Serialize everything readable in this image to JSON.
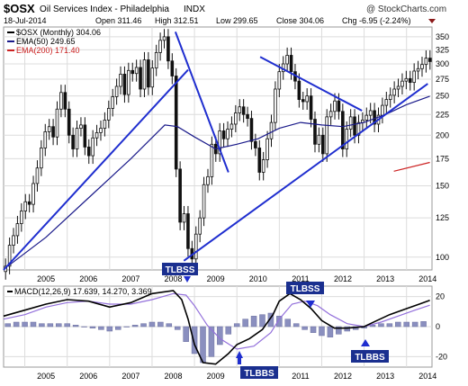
{
  "header": {
    "symbol": "$OSX",
    "name": "Oil Services Index - Philadelphia",
    "exchange": "INDX",
    "date": "18-Jul-2014",
    "open": "Open 311.46",
    "high": "High 312.51",
    "low": "Low 299.65",
    "close": "Close 304.06",
    "chg": "Chg -6.95 (-2.24%)",
    "watermark": "@ StockCharts.com"
  },
  "legend": {
    "price": "$OSX (Monthly) 304.06",
    "ema50": "EMA(50) 249.65",
    "ema200": "EMA(200) 171.40"
  },
  "macd_label": {
    "name": "MACD(12,26,9) 17.639, 14.270, 3.369"
  },
  "annotations": {
    "a1": "TLBSS",
    "a2": "TLBBS",
    "a3": "TLBSS",
    "a4": "TLBBS"
  },
  "colors": {
    "candle": "#111111",
    "ema50": "#1a1a8a",
    "ema200": "#cc2222",
    "trendline": "#1f2ecf",
    "macd": "#000000",
    "signal": "#9370db",
    "histogram": "#8a8fbf",
    "grid": "#dcdcdc",
    "down_triangle": "#8b1a1a"
  },
  "chart_data": [
    {
      "type": "candlestick",
      "title": "$OSX Oil Services Index - Philadelphia INDX",
      "scale": "log",
      "ylim": [
        93,
        370
      ],
      "yticks": [
        100,
        125,
        150,
        175,
        200,
        225,
        250,
        275,
        300,
        325,
        350
      ],
      "xlim": [
        2004.5,
        2014.6
      ],
      "xticks": [
        "2005",
        "2006",
        "2007",
        "2008",
        "2009",
        "2010",
        "2011",
        "2012",
        "2013",
        "2014"
      ],
      "grid": true,
      "legend_position": "top-left",
      "series": [
        {
          "name": "$OSX (Monthly)",
          "style": "candles",
          "close": [
            95,
            107,
            113,
            121,
            130,
            137,
            135,
            152,
            166,
            186,
            204,
            210,
            198,
            232,
            255,
            232,
            200,
            185,
            208,
            212,
            187,
            178,
            197,
            203,
            208,
            218,
            233,
            249,
            264,
            283,
            252,
            289,
            284,
            294,
            260,
            307,
            263,
            293,
            320,
            343,
            350,
            305,
            280,
            165,
            122,
            128,
            105,
            99,
            114,
            125,
            151,
            158,
            190,
            180,
            205,
            196,
            207,
            213,
            227,
            235,
            225,
            220,
            193,
            186,
            162,
            174,
            196,
            215,
            260,
            287,
            300,
            315,
            287,
            272,
            245,
            242,
            250,
            219,
            190,
            200,
            180,
            222,
            229,
            243,
            229,
            185,
            207,
            222,
            200,
            215,
            218,
            224,
            230,
            213,
            224,
            237,
            245,
            251,
            260,
            264,
            272,
            276,
            270,
            288,
            292,
            299,
            310,
            304
          ]
        },
        {
          "name": "EMA(50)",
          "x": [
            2004.6,
            2005.5,
            2006.5,
            2007.5,
            2008.3,
            2008.6,
            2009.0,
            2009.5,
            2010.0,
            2010.5,
            2011.0,
            2011.5,
            2012.0,
            2012.5,
            2013.0,
            2013.5,
            2014.0,
            2014.55
          ],
          "y": [
            95,
            112,
            140,
            175,
            212,
            210,
            198,
            185,
            190,
            196,
            208,
            215,
            212,
            210,
            215,
            225,
            238,
            249.65
          ]
        },
        {
          "name": "EMA(200)",
          "x": [
            2013.7,
            2014.55
          ],
          "y": [
            163,
            171.4
          ]
        },
        {
          "name": "Trendline 1",
          "x": [
            2004.5,
            2008.85
          ],
          "y": [
            93,
            290
          ]
        },
        {
          "name": "Trendline 2",
          "x": [
            2008.55,
            2009.8
          ],
          "y": [
            360,
            162
          ]
        },
        {
          "name": "Trendline 3",
          "x": [
            2008.75,
            2014.5
          ],
          "y": [
            98,
            268
          ]
        },
        {
          "name": "Trendline 4",
          "x": [
            2010.55,
            2012.95
          ],
          "y": [
            312,
            230
          ]
        }
      ]
    },
    {
      "type": "line",
      "title": "MACD(12,26,9) 17.639, 14.270, 3.369",
      "ylim": [
        -27,
        27
      ],
      "yticks": [
        -20,
        0,
        20
      ],
      "xticks": [
        "2005",
        "2006",
        "2007",
        "2008",
        "2009",
        "2010",
        "2011",
        "2012",
        "2013",
        "2014"
      ],
      "series": [
        {
          "name": "MACD",
          "x": [
            2004.5,
            2005.0,
            2005.5,
            2006.0,
            2006.5,
            2007.0,
            2007.5,
            2008.0,
            2008.5,
            2008.7,
            2008.85,
            2009.0,
            2009.2,
            2009.5,
            2009.8,
            2010.0,
            2010.3,
            2010.6,
            2010.85,
            2011.0,
            2011.25,
            2011.5,
            2011.75,
            2012.0,
            2012.3,
            2012.6,
            2013.0,
            2013.3,
            2013.6,
            2014.0,
            2014.3,
            2014.55
          ],
          "y": [
            7,
            11,
            15,
            18,
            17,
            13,
            16,
            22,
            24,
            18,
            5,
            -12,
            -24,
            -25,
            -18,
            -12,
            -8,
            -2,
            8,
            17,
            22,
            18,
            12,
            4,
            -1,
            -1,
            0,
            4,
            8,
            12,
            15,
            17.6
          ]
        },
        {
          "name": "Signal",
          "x": [
            2004.5,
            2005.0,
            2005.5,
            2006.0,
            2006.5,
            2007.0,
            2007.5,
            2008.0,
            2008.5,
            2008.8,
            2009.0,
            2009.3,
            2009.6,
            2010.0,
            2010.4,
            2010.8,
            2011.0,
            2011.3,
            2011.6,
            2011.9,
            2012.2,
            2012.6,
            2013.0,
            2013.4,
            2013.8,
            2014.2,
            2014.55
          ],
          "y": [
            5,
            8,
            13,
            16,
            17,
            15,
            15,
            18,
            22,
            21,
            14,
            1,
            -8,
            -15,
            -13,
            -4,
            5,
            15,
            17,
            14,
            8,
            2,
            0,
            3,
            7,
            11,
            14.3
          ]
        },
        {
          "name": "Histogram",
          "x": [
            2004.6,
            2004.8,
            2005.0,
            2005.2,
            2005.4,
            2005.6,
            2005.8,
            2006.0,
            2006.2,
            2006.4,
            2006.6,
            2006.8,
            2007.0,
            2007.2,
            2007.4,
            2007.6,
            2007.8,
            2008.0,
            2008.2,
            2008.4,
            2008.6,
            2008.8,
            2009.0,
            2009.2,
            2009.4,
            2009.6,
            2009.8,
            2010.0,
            2010.2,
            2010.4,
            2010.6,
            2010.8,
            2011.0,
            2011.2,
            2011.4,
            2011.6,
            2011.8,
            2012.0,
            2012.2,
            2012.4,
            2012.6,
            2012.8,
            2013.0,
            2013.2,
            2013.4,
            2013.6,
            2013.8,
            2014.0,
            2014.2,
            2014.4
          ],
          "y": [
            2,
            3,
            3,
            3,
            2,
            2,
            2,
            2,
            1,
            0,
            -1,
            -2,
            -3,
            -2,
            0,
            1,
            2,
            3,
            3,
            2,
            -2,
            -10,
            -18,
            -24,
            -20,
            -12,
            -5,
            2,
            5,
            7,
            8,
            9,
            7,
            5,
            2,
            -2,
            -4,
            -6,
            -7,
            -5,
            -3,
            -2,
            -1,
            1,
            2,
            2,
            3,
            3,
            3,
            3.4
          ]
        }
      ]
    }
  ]
}
